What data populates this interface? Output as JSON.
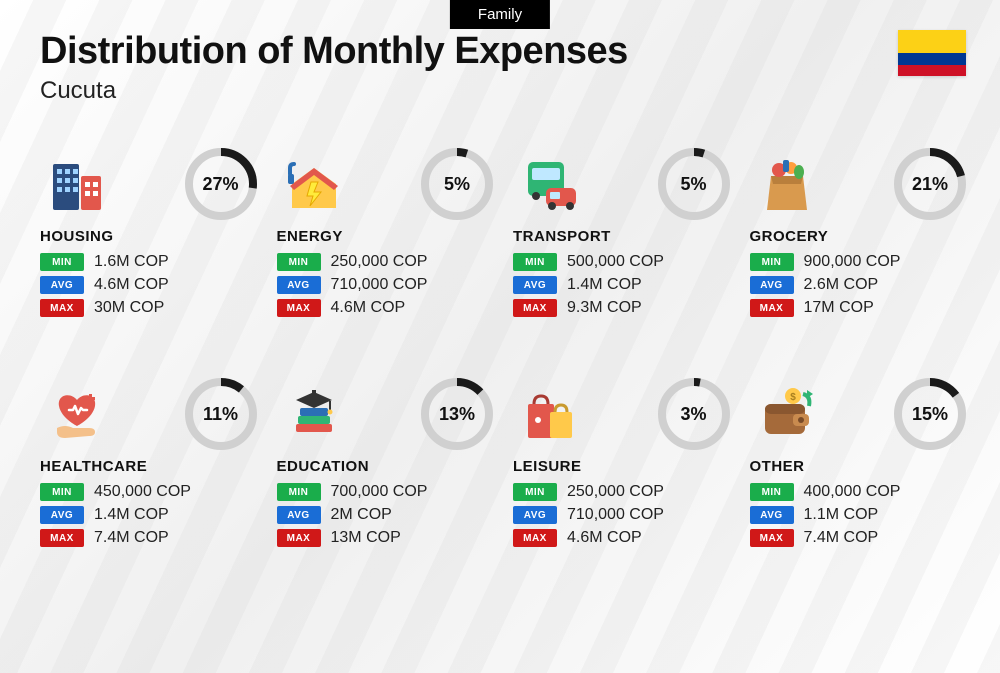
{
  "tag": "Family",
  "title": "Distribution of Monthly Expenses",
  "subtitle": "Cucuta",
  "flag": {
    "top": "#FCD116",
    "mid": "#003893",
    "bot": "#CE1126"
  },
  "ring": {
    "radius": 32,
    "stroke_width": 8,
    "bg_color": "#d0d0d0",
    "fg_color": "#1a1a1a",
    "label_fontsize": 18,
    "label_fontweight": 800
  },
  "badges": {
    "min": {
      "label": "MIN",
      "color": "#1aad4b"
    },
    "avg": {
      "label": "AVG",
      "color": "#1a6dd6"
    },
    "max": {
      "label": "MAX",
      "color": "#d01818"
    }
  },
  "typography": {
    "title_fontsize": 38,
    "title_fontweight": 800,
    "subtitle_fontsize": 24,
    "category_fontsize": 15,
    "category_fontweight": 800,
    "value_fontsize": 16
  },
  "categories": [
    {
      "id": "housing",
      "name": "HOUSING",
      "pct": 27,
      "min": "1.6M COP",
      "avg": "4.6M COP",
      "max": "30M COP",
      "icon": "buildings"
    },
    {
      "id": "energy",
      "name": "ENERGY",
      "pct": 5,
      "min": "250,000 COP",
      "avg": "710,000 COP",
      "max": "4.6M COP",
      "icon": "energy-house"
    },
    {
      "id": "transport",
      "name": "TRANSPORT",
      "pct": 5,
      "min": "500,000 COP",
      "avg": "1.4M COP",
      "max": "9.3M COP",
      "icon": "bus-car"
    },
    {
      "id": "grocery",
      "name": "GROCERY",
      "pct": 21,
      "min": "900,000 COP",
      "avg": "2.6M COP",
      "max": "17M COP",
      "icon": "grocery-bag"
    },
    {
      "id": "healthcare",
      "name": "HEALTHCARE",
      "pct": 11,
      "min": "450,000 COP",
      "avg": "1.4M COP",
      "max": "7.4M COP",
      "icon": "heart-hand"
    },
    {
      "id": "education",
      "name": "EDUCATION",
      "pct": 13,
      "min": "700,000 COP",
      "avg": "2M COP",
      "max": "13M COP",
      "icon": "grad-books"
    },
    {
      "id": "leisure",
      "name": "LEISURE",
      "pct": 3,
      "min": "250,000 COP",
      "avg": "710,000 COP",
      "max": "4.6M COP",
      "icon": "shopping-bags"
    },
    {
      "id": "other",
      "name": "OTHER",
      "pct": 15,
      "min": "400,000 COP",
      "avg": "1.1M COP",
      "max": "7.4M COP",
      "icon": "wallet"
    }
  ]
}
